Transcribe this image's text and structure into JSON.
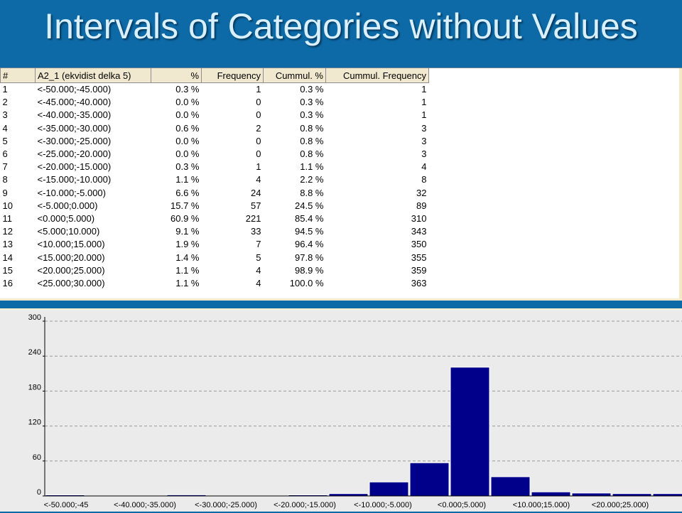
{
  "slide": {
    "title": "Intervals of Categories without Values"
  },
  "table": {
    "columns": [
      "#",
      "A2_1 (ekvidist delka 5)",
      "%",
      "Frequency",
      "Cummul. %",
      "Cummul. Frequency"
    ],
    "rows": [
      [
        "1",
        "<-50.000;-45.000)",
        "0.3 %",
        "1",
        "0.3 %",
        "1"
      ],
      [
        "2",
        "<-45.000;-40.000)",
        "0.0 %",
        "0",
        "0.3 %",
        "1"
      ],
      [
        "3",
        "<-40.000;-35.000)",
        "0.0 %",
        "0",
        "0.3 %",
        "1"
      ],
      [
        "4",
        "<-35.000;-30.000)",
        "0.6 %",
        "2",
        "0.8 %",
        "3"
      ],
      [
        "5",
        "<-30.000;-25.000)",
        "0.0 %",
        "0",
        "0.8 %",
        "3"
      ],
      [
        "6",
        "<-25.000;-20.000)",
        "0.0 %",
        "0",
        "0.8 %",
        "3"
      ],
      [
        "7",
        "<-20.000;-15.000)",
        "0.3 %",
        "1",
        "1.1 %",
        "4"
      ],
      [
        "8",
        "<-15.000;-10.000)",
        "1.1 %",
        "4",
        "2.2 %",
        "8"
      ],
      [
        "9",
        "<-10.000;-5.000)",
        "6.6 %",
        "24",
        "8.8 %",
        "32"
      ],
      [
        "10",
        "<-5.000;0.000)",
        "15.7 %",
        "57",
        "24.5 %",
        "89"
      ],
      [
        "11",
        "<0.000;5.000)",
        "60.9 %",
        "221",
        "85.4 %",
        "310"
      ],
      [
        "12",
        "<5.000;10.000)",
        "9.1 %",
        "33",
        "94.5 %",
        "343"
      ],
      [
        "13",
        "<10.000;15.000)",
        "1.9 %",
        "7",
        "96.4 %",
        "350"
      ],
      [
        "14",
        "<15.000;20.000)",
        "1.4 %",
        "5",
        "97.8 %",
        "355"
      ],
      [
        "15",
        "<20.000;25.000)",
        "1.1 %",
        "4",
        "98.9 %",
        "359"
      ],
      [
        "16",
        "<25.000;30.000)",
        "1.1 %",
        "4",
        "100.0 %",
        "363"
      ]
    ]
  },
  "chart_data": {
    "type": "bar",
    "categories": [
      "<-50.000;-45.000)",
      "<-45.000;-40.000)",
      "<-40.000;-35.000)",
      "<-35.000;-30.000)",
      "<-30.000;-25.000)",
      "<-25.000;-20.000)",
      "<-20.000;-15.000)",
      "<-15.000;-10.000)",
      "<-10.000;-5.000)",
      "<-5.000;0.000)",
      "<0.000;5.000)",
      "<5.000;10.000)",
      "<10.000;15.000)",
      "<15.000;20.000)",
      "<20.000;25.000)",
      "<25.000;30.000)"
    ],
    "values": [
      1,
      0,
      0,
      2,
      0,
      0,
      1,
      4,
      24,
      57,
      221,
      33,
      7,
      5,
      4,
      4
    ],
    "shown_category_labels": [
      "<-50.000;-45",
      "<-40.000;-35.000)",
      "<-30.000;-25.000)",
      "<-20.000;-15.000)",
      "<-10.000;-5.000)",
      "<0.000;5.000)",
      "<10.000;15.000)",
      "<20.000;25.000)"
    ],
    "yticks": [
      0,
      60,
      120,
      180,
      240,
      300
    ],
    "ylim": [
      0,
      300
    ],
    "bar_color": "#00008b",
    "grid": "dashed horizontal",
    "title": "",
    "xlabel": "",
    "ylabel": ""
  }
}
